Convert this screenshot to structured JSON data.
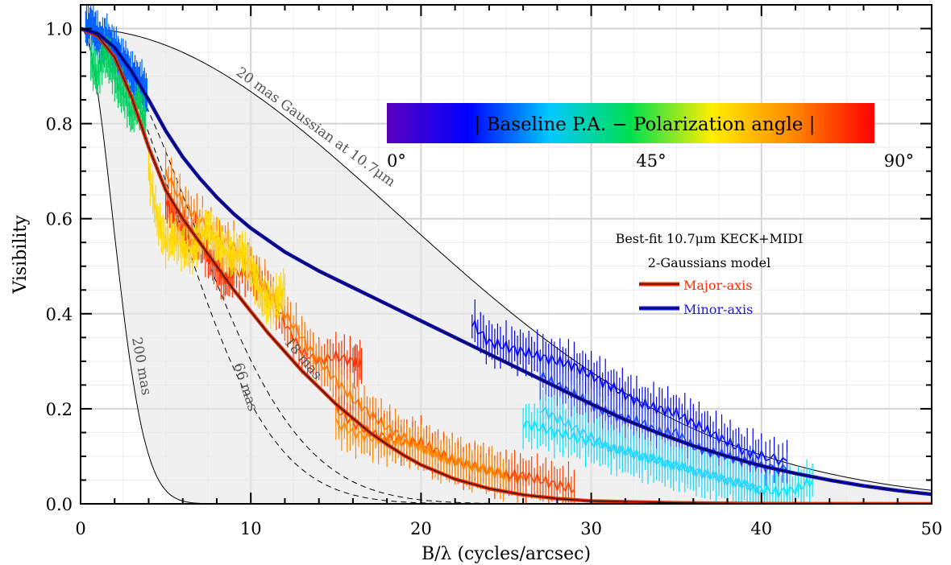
{
  "chart_data": {
    "type": "line",
    "xlabel": "B/λ (cycles/arcsec)",
    "ylabel": "Visibility",
    "xlim": [
      0,
      50
    ],
    "ylim": [
      0,
      1.05
    ],
    "x_ticks": [
      "0",
      "10",
      "20",
      "30",
      "40",
      "50"
    ],
    "y_ticks": [
      "0.0",
      "0.2",
      "0.4",
      "0.6",
      "0.8",
      "1.0"
    ],
    "grid": true,
    "gaussian_curves": [
      {
        "label": "20 mas Gaussian at 10.7μm",
        "fwhm_mas": 20,
        "style": "solid"
      },
      {
        "label": "66 mas",
        "fwhm_mas": 66,
        "style": "dashed"
      },
      {
        "label": "200 mas",
        "fwhm_mas": 200,
        "style": "solid"
      },
      {
        "label": "",
        "fwhm_mas": 58,
        "style": "dashed"
      }
    ],
    "partial_label": "18 mas",
    "colorbar": {
      "title": "| Baseline P.A. − Polarization angle |",
      "ticks": [
        "0°",
        "45°",
        "90°"
      ],
      "colors": [
        "#5a00c0",
        "#0000ff",
        "#00c8ff",
        "#00e050",
        "#ffee00",
        "#ff8800",
        "#ff0000"
      ]
    },
    "legend": {
      "title_line1": "Best-fit 10.7μm KECK+MIDI",
      "title_line2": "2-Gaussians model",
      "items": [
        {
          "label": "Major-axis",
          "color": "#ff2a00"
        },
        {
          "label": "Minor-axis",
          "color": "#0000e0"
        }
      ]
    },
    "model_series": [
      {
        "name": "Major-axis",
        "color": "#e03000",
        "x": [
          0,
          1,
          2,
          3,
          4,
          5,
          6,
          7,
          8,
          9,
          10,
          11,
          12,
          13,
          14,
          15,
          16,
          17,
          18,
          19,
          20,
          22,
          24,
          26,
          28,
          30,
          35,
          40,
          45,
          50
        ],
        "y": [
          1.0,
          0.985,
          0.94,
          0.855,
          0.75,
          0.66,
          0.6,
          0.55,
          0.5,
          0.45,
          0.405,
          0.36,
          0.32,
          0.28,
          0.245,
          0.21,
          0.18,
          0.15,
          0.125,
          0.102,
          0.082,
          0.052,
          0.032,
          0.019,
          0.011,
          0.006,
          0.002,
          0.0005,
          0.0001,
          0.0
        ]
      },
      {
        "name": "Minor-axis",
        "color": "#1010c0",
        "x": [
          0,
          1,
          2,
          3,
          4,
          5,
          6,
          7,
          8,
          9,
          10,
          12,
          14,
          16,
          18,
          20,
          22,
          24,
          26,
          28,
          30,
          32,
          34,
          36,
          38,
          40,
          42,
          44,
          46,
          48,
          50
        ],
        "y": [
          1.0,
          0.99,
          0.96,
          0.91,
          0.85,
          0.785,
          0.73,
          0.685,
          0.645,
          0.61,
          0.58,
          0.53,
          0.49,
          0.455,
          0.42,
          0.385,
          0.35,
          0.315,
          0.28,
          0.245,
          0.21,
          0.177,
          0.148,
          0.122,
          0.1,
          0.08,
          0.064,
          0.05,
          0.038,
          0.028,
          0.02
        ]
      }
    ],
    "observed_series": [
      {
        "pa_diff_deg": 5,
        "color": "#0000ff",
        "x": [
          23,
          24,
          25,
          26,
          27,
          28,
          29,
          30,
          31,
          32,
          33,
          34,
          35,
          36,
          37,
          38,
          39,
          40,
          41.5
        ],
        "y": [
          0.38,
          0.34,
          0.33,
          0.32,
          0.31,
          0.3,
          0.29,
          0.27,
          0.25,
          0.23,
          0.21,
          0.2,
          0.19,
          0.17,
          0.15,
          0.13,
          0.11,
          0.1,
          0.09
        ]
      },
      {
        "pa_diff_deg": 10,
        "color": "#2040ff",
        "x": [
          27,
          28,
          29,
          30,
          31,
          32,
          33,
          34,
          35,
          36,
          37,
          38,
          39,
          40,
          41.5
        ],
        "y": [
          0.27,
          0.25,
          0.23,
          0.21,
          0.19,
          0.18,
          0.17,
          0.15,
          0.15,
          0.12,
          0.11,
          0.1,
          0.09,
          0.08,
          0.07
        ]
      },
      {
        "pa_diff_deg": 30,
        "color": "#00e8ff",
        "x": [
          26,
          27,
          28,
          29,
          30,
          31,
          32,
          33,
          34,
          35,
          36,
          37,
          38,
          39,
          40,
          41,
          42,
          43
        ],
        "y": [
          0.17,
          0.16,
          0.15,
          0.14,
          0.13,
          0.12,
          0.11,
          0.1,
          0.09,
          0.08,
          0.07,
          0.06,
          0.05,
          0.04,
          0.03,
          0.025,
          0.03,
          0.05
        ]
      },
      {
        "pa_diff_deg": 27,
        "color": "#30d0ff",
        "x": [
          27,
          28,
          29,
          30,
          31,
          32,
          33,
          34,
          35,
          36,
          37,
          38,
          39,
          40
        ],
        "y": [
          0.2,
          0.18,
          0.16,
          0.14,
          0.12,
          0.11,
          0.1,
          0.09,
          0.08,
          0.07,
          0.06,
          0.05,
          0.04,
          0.03
        ]
      },
      {
        "pa_diff_deg": 80,
        "color": "#ff3300",
        "x": [
          5,
          5.5,
          6,
          6.5,
          7,
          7.5,
          8,
          8.5,
          9,
          10,
          11,
          12,
          13,
          14,
          15,
          16,
          16.5
        ],
        "y": [
          0.64,
          0.6,
          0.57,
          0.55,
          0.56,
          0.52,
          0.5,
          0.47,
          0.49,
          0.48,
          0.45,
          0.38,
          0.32,
          0.3,
          0.31,
          0.3,
          0.29
        ]
      },
      {
        "pa_diff_deg": 72,
        "color": "#ff7700",
        "x": [
          5,
          6,
          7,
          8,
          9,
          10,
          11,
          12,
          13,
          14,
          15,
          16,
          17,
          18,
          19,
          20,
          21,
          22,
          23,
          24,
          25,
          26
        ],
        "y": [
          0.7,
          0.63,
          0.6,
          0.56,
          0.54,
          0.5,
          0.45,
          0.4,
          0.35,
          0.3,
          0.26,
          0.22,
          0.19,
          0.16,
          0.14,
          0.12,
          0.1,
          0.09,
          0.08,
          0.07,
          0.06,
          0.05
        ]
      },
      {
        "pa_diff_deg": 62,
        "color": "#ffd800",
        "x": [
          4,
          4.5,
          5,
          5.5,
          6,
          6.5,
          7,
          7.5,
          8,
          8.5,
          9,
          9.5,
          10,
          10.5,
          11,
          11.5,
          12
        ],
        "y": [
          0.7,
          0.6,
          0.55,
          0.56,
          0.54,
          0.53,
          0.56,
          0.58,
          0.55,
          0.53,
          0.52,
          0.53,
          0.5,
          0.45,
          0.42,
          0.43,
          0.45
        ]
      },
      {
        "pa_diff_deg": 85,
        "color": "#ff4400",
        "x": [
          15,
          16,
          17,
          18,
          19,
          20,
          21,
          22,
          23,
          24,
          25,
          26,
          27,
          28,
          29
        ],
        "y": [
          0.2,
          0.17,
          0.15,
          0.14,
          0.13,
          0.13,
          0.11,
          0.09,
          0.08,
          0.07,
          0.06,
          0.06,
          0.05,
          0.04,
          0.03
        ]
      },
      {
        "pa_diff_deg": 75,
        "color": "#ff8c00",
        "x": [
          15,
          16,
          17,
          18,
          19,
          20,
          21,
          22,
          23,
          24,
          25
        ],
        "y": [
          0.17,
          0.15,
          0.14,
          0.13,
          0.13,
          0.12,
          0.1,
          0.09,
          0.08,
          0.07,
          0.06
        ]
      },
      {
        "pa_diff_deg": 20,
        "color": "#0060ff",
        "x": [
          0.3,
          0.6,
          0.9,
          1.2,
          1.5,
          1.8,
          2.1,
          2.4,
          2.7,
          3.0,
          3.3,
          3.6,
          3.9
        ],
        "y": [
          1.0,
          1.01,
          0.99,
          0.97,
          0.98,
          0.96,
          0.95,
          0.93,
          0.92,
          0.9,
          0.89,
          0.88,
          0.86
        ]
      },
      {
        "pa_diff_deg": 40,
        "color": "#00d060",
        "x": [
          0.6,
          1.0,
          1.4,
          1.8,
          2.2,
          2.6,
          3.0,
          3.4,
          3.8
        ],
        "y": [
          0.93,
          0.9,
          0.95,
          0.92,
          0.88,
          0.86,
          0.82,
          0.85,
          0.8
        ]
      }
    ]
  }
}
